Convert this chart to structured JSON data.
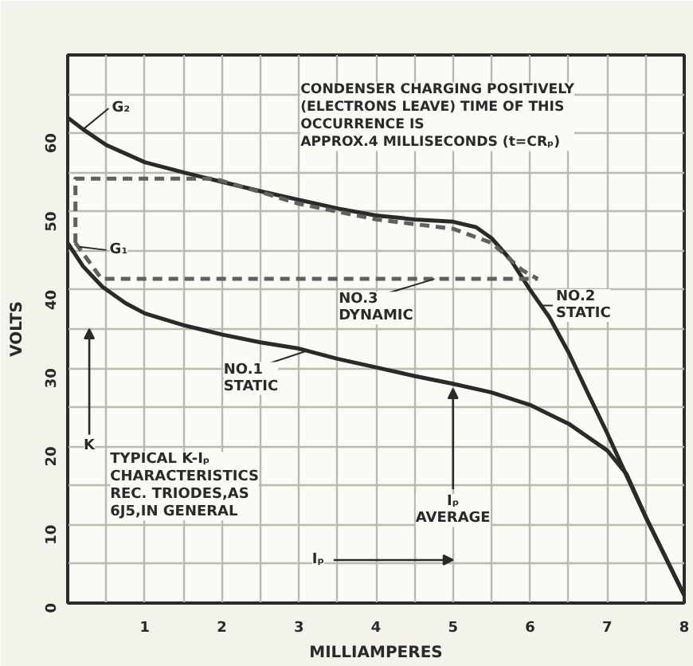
{
  "chart_data": {
    "type": "line",
    "xlabel": "MILLIAMPERES",
    "ylabel": "VOLTS",
    "xlim": [
      0,
      8
    ],
    "ylim": [
      0,
      70
    ],
    "xticks": [
      {
        "value": 0.5,
        "label": null
      },
      1,
      {
        "value": 1.5,
        "label": null
      },
      2,
      {
        "value": 2.5,
        "label": null
      },
      3,
      {
        "value": 3.5,
        "label": null
      },
      4,
      {
        "value": 4.5,
        "label": null
      },
      5,
      {
        "value": 5.5,
        "label": null
      },
      6,
      {
        "value": 6.5,
        "label": null
      },
      7,
      {
        "value": 7.5,
        "label": null
      },
      8
    ],
    "yticks": [
      0,
      {
        "value": 5,
        "label": null
      },
      10,
      {
        "value": 15,
        "label": null
      },
      20,
      {
        "value": 25,
        "label": null
      },
      30,
      {
        "value": 35,
        "label": null
      },
      40,
      {
        "value": 45,
        "label": null
      },
      50,
      {
        "value": 55,
        "label": null
      },
      60,
      {
        "value": 65,
        "label": null
      }
    ],
    "grid": true,
    "line_style": "solid",
    "series": [
      {
        "color": "#2a2a2a",
        "x": [
          0,
          0.2,
          0.5,
          1,
          1.5,
          2,
          2.5,
          3,
          3.5,
          4,
          4.5,
          5,
          5.3,
          5.5,
          5.75,
          6,
          6.25,
          6.5,
          6.75,
          7,
          7.25,
          7.5,
          7.75,
          8
        ],
        "values": [
          62,
          60.5,
          58.5,
          56.3,
          55,
          53.8,
          52.6,
          51.5,
          50.4,
          49.5,
          49,
          48.7,
          48,
          46.6,
          43.8,
          40,
          36.5,
          32,
          26.8,
          21.7,
          16.3,
          11,
          6,
          1
        ]
      },
      {
        "color": "#2a2a2a",
        "x": [
          0,
          0.2,
          0.45,
          0.75,
          1,
          1.5,
          2,
          2.5,
          3,
          3.5,
          4,
          4.5,
          5,
          5.5,
          6,
          6.5,
          7,
          7.25,
          7.5,
          7.75,
          8
        ],
        "values": [
          46,
          43,
          40.4,
          38.3,
          37,
          35.5,
          34.3,
          33.3,
          32.5,
          31.2,
          30.1,
          29,
          28,
          26.9,
          25.3,
          22.9,
          19.5,
          16.5,
          11,
          6,
          1
        ]
      },
      {
        "color": "#606060",
        "line_style": "dashed",
        "x": [
          0.1,
          0.1,
          1.9,
          2.5,
          3,
          4,
          5,
          5.5,
          5.9,
          6.1
        ],
        "values": [
          46,
          54.2,
          54.2,
          52.5,
          51,
          49,
          47.8,
          46,
          42.5,
          41.4
        ]
      },
      {
        "color": "#606060",
        "line_style": "dashed",
        "x": [
          0.1,
          0.44,
          6.1
        ],
        "values": [
          46,
          41.4,
          41.4
        ]
      }
    ],
    "annotations": [
      {
        "text": "G₂",
        "x": 0.2,
        "y": 60.5
      },
      {
        "text": "G₁",
        "x": 0.15,
        "y": 45.5
      },
      {
        "text": "NO.3\nDYNAMIC",
        "x": 4.76,
        "y": 41.4
      },
      {
        "text": "NO.2\nSTATIC",
        "x": 6.15,
        "y": 38
      },
      {
        "text": "NO.1\nSTATIC",
        "x": 3.1,
        "y": 32.2
      },
      {
        "text": "Iₚ\nAVERAGE",
        "x": 5,
        "y": 28
      },
      "CONDENSER CHARGING POSITIVELY\n(ELECTRONS LEAVE) TIME OF THIS\nOCCURRENCE IS\nAPPROX.4 MILLISECONDS  (t=CRₚ)",
      "TYPICAL K-Iₚ\nCHARACTERISTICS\nREC. TRIODES,AS\n6J5,IN GENERAL",
      "K",
      "Iₚ"
    ]
  }
}
